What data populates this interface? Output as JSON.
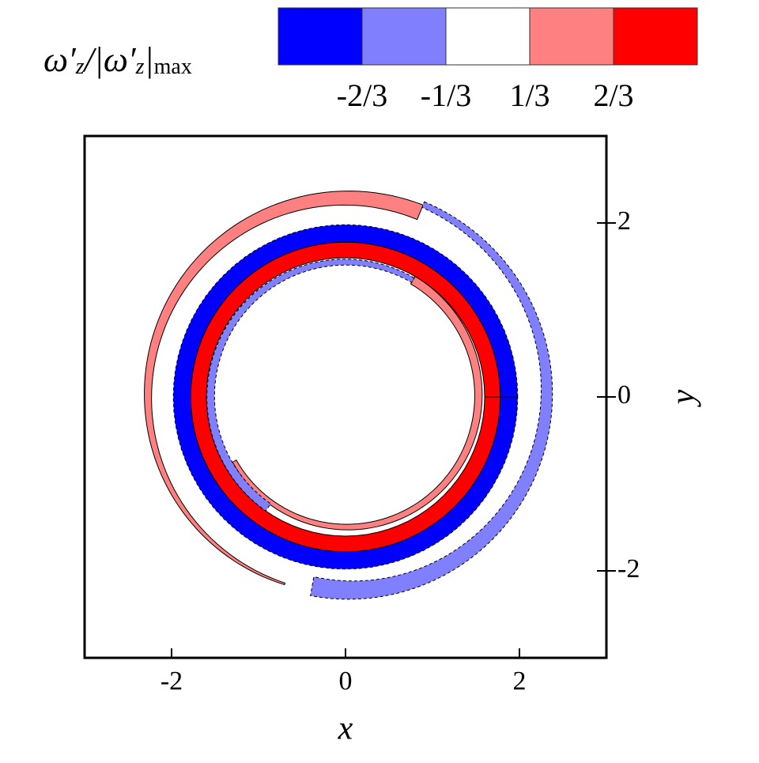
{
  "chart_data": {
    "type": "contour",
    "xlabel": "x",
    "ylabel": "y",
    "xlim": [
      -3,
      3
    ],
    "ylim": [
      -3,
      3
    ],
    "xticks": [
      -2,
      0,
      2
    ],
    "yticks": [
      -2,
      0,
      2
    ],
    "colorbar": {
      "title": [
        {
          "text": "ω′"
        },
        {
          "text": "z",
          "sub": true
        },
        {
          "text": "/|ω′"
        },
        {
          "text": "z",
          "sub": true
        },
        {
          "text": "|"
        },
        {
          "text": "max",
          "sub": true
        }
      ],
      "colors": [
        "#0000ff",
        "#8080ff",
        "#ffffff",
        "#ff8080",
        "#ff0000"
      ],
      "ticks": [
        {
          "value": -0.6667,
          "label": "-2/3"
        },
        {
          "value": -0.3333,
          "label": "-1/3"
        },
        {
          "value": 0.3333,
          "label": "1/3"
        },
        {
          "value": 0.6667,
          "label": "2/3"
        }
      ]
    }
  }
}
